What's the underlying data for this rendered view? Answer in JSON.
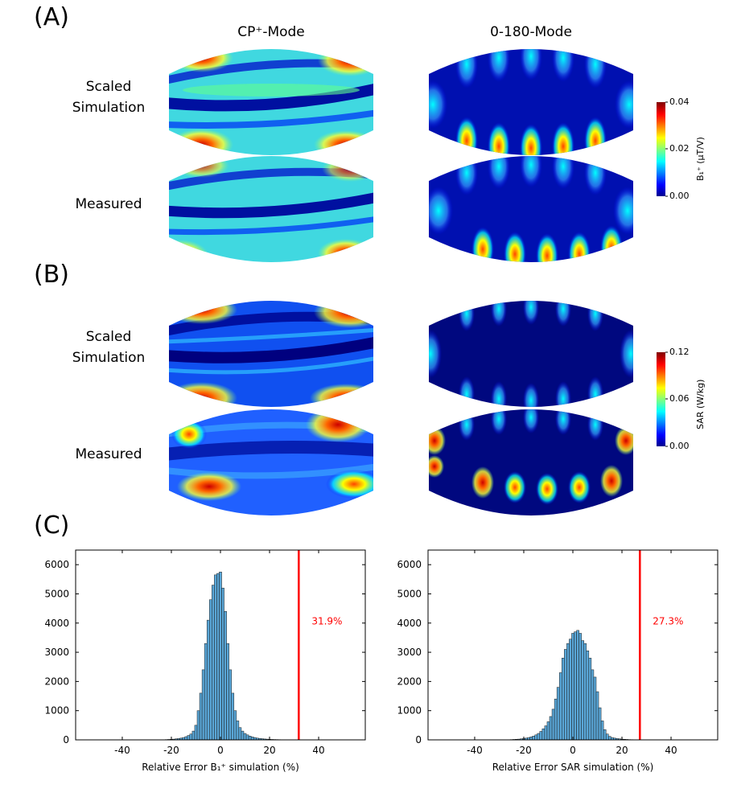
{
  "panels": {
    "A": "(A)",
    "B": "(B)",
    "C": "(C)"
  },
  "columns": {
    "left": "CP⁺-Mode",
    "right": "0-180-Mode"
  },
  "rows": {
    "a_top_line1": "Scaled",
    "a_top_line2": "Simulation",
    "a_bottom": "Measured",
    "b_top_line1": "Scaled",
    "b_top_line2": "Simulation",
    "b_bottom": "Measured"
  },
  "colorbars": {
    "b1": {
      "max": "0.04",
      "mid": "0.02",
      "min": "0.00",
      "title": "B₁⁺ (μT/V)"
    },
    "sar": {
      "max": "0.12",
      "mid": "0.06",
      "min": "0.00",
      "title": "SAR (W/kg)"
    }
  },
  "chart_data": [
    {
      "type": "bar",
      "xlabel": "Relative Error B₁⁺ simulation (%)",
      "ylabel": "",
      "xlim": [
        -59,
        59
      ],
      "ylim": [
        0,
        6500
      ],
      "xticks": [
        -40,
        -20,
        0,
        20,
        40
      ],
      "yticks": [
        0,
        1000,
        2000,
        3000,
        4000,
        5000,
        6000
      ],
      "bin_width": 1,
      "bins": [
        -22,
        -21,
        -20,
        -19,
        -18,
        -17,
        -16,
        -15,
        -14,
        -13,
        -12,
        -11,
        -10,
        -9,
        -8,
        -7,
        -6,
        -5,
        -4,
        -3,
        -2,
        -1,
        0,
        1,
        2,
        3,
        4,
        5,
        6,
        7,
        8,
        9,
        10,
        11,
        12,
        13,
        14,
        15,
        16,
        17,
        18,
        19,
        20,
        21,
        22,
        23,
        24,
        25,
        26,
        27,
        28,
        29,
        30
      ],
      "values": [
        10,
        15,
        20,
        25,
        35,
        45,
        60,
        80,
        110,
        150,
        200,
        300,
        500,
        1000,
        1600,
        2400,
        3300,
        4100,
        4800,
        5300,
        5650,
        5700,
        5750,
        5200,
        4400,
        3300,
        2400,
        1600,
        1000,
        650,
        420,
        300,
        220,
        170,
        130,
        100,
        80,
        60,
        50,
        40,
        30,
        25,
        20,
        15,
        12,
        10,
        8,
        6,
        5,
        4,
        3,
        2,
        2
      ],
      "threshold": 31.9,
      "threshold_label": "31.9%"
    },
    {
      "type": "bar",
      "xlabel": "Relative Error SAR simulation (%)",
      "ylabel": "",
      "xlim": [
        -59,
        59
      ],
      "ylim": [
        0,
        6500
      ],
      "xticks": [
        -40,
        -20,
        0,
        20,
        40
      ],
      "yticks": [
        0,
        1000,
        2000,
        3000,
        4000,
        5000,
        6000
      ],
      "bin_width": 1,
      "bins": [
        -25,
        -24,
        -23,
        -22,
        -21,
        -20,
        -19,
        -18,
        -17,
        -16,
        -15,
        -14,
        -13,
        -12,
        -11,
        -10,
        -9,
        -8,
        -7,
        -6,
        -5,
        -4,
        -3,
        -2,
        -1,
        0,
        1,
        2,
        3,
        4,
        5,
        6,
        7,
        8,
        9,
        10,
        11,
        12,
        13,
        14,
        15,
        16,
        17,
        18,
        19,
        20,
        21,
        22,
        23,
        24,
        25,
        26
      ],
      "values": [
        10,
        15,
        20,
        25,
        35,
        45,
        60,
        80,
        100,
        130,
        170,
        220,
        290,
        380,
        480,
        620,
        800,
        1050,
        1400,
        1800,
        2300,
        2800,
        3100,
        3300,
        3450,
        3650,
        3700,
        3750,
        3650,
        3400,
        3300,
        3050,
        2800,
        2400,
        2150,
        1650,
        1100,
        650,
        350,
        200,
        120,
        80,
        60,
        45,
        35,
        25,
        20,
        15,
        10,
        8,
        6,
        5
      ],
      "threshold": 27.3,
      "threshold_label": "27.3%"
    }
  ]
}
